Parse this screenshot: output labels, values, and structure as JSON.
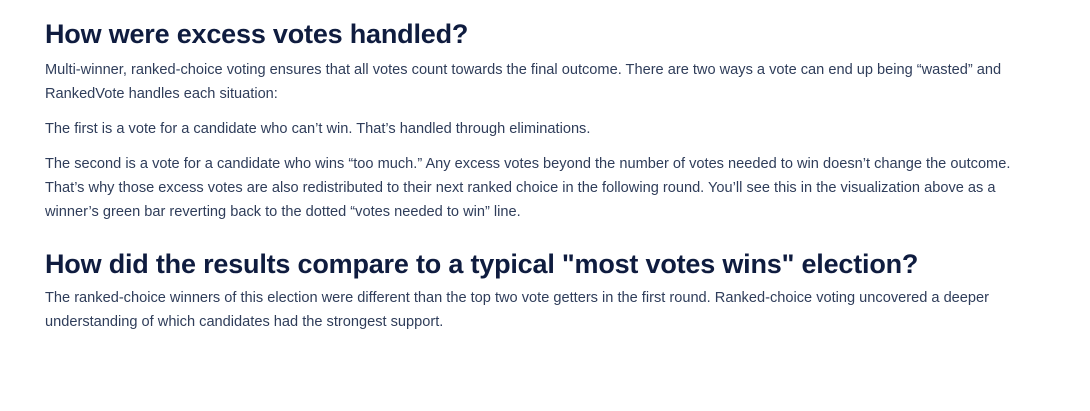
{
  "section_excess": {
    "heading": "How were excess votes handled?",
    "paragraphs": [
      "Multi-winner, ranked-choice voting ensures that all votes count towards the final outcome. There are two ways a vote can end up being “wasted” and RankedVote handles each situation:",
      "The first is a vote for a candidate who can’t win. That’s handled through eliminations.",
      "The second is a vote for a candidate who wins “too much.” Any excess votes beyond the number of votes needed to win doesn’t change the outcome. That’s why those excess votes are also redistributed to their next ranked choice in the following round. You’ll see this in the visualization above as a winner’s green bar reverting back to the dotted “votes needed to win” line."
    ]
  },
  "section_compare": {
    "heading": "How did the results compare to a typical \"most votes wins\" election?",
    "paragraphs": [
      "The ranked-choice winners of this election were different than the top two vote getters in the first round. Ranked-choice voting uncovered a deeper understanding of which candidates had the strongest support."
    ]
  }
}
